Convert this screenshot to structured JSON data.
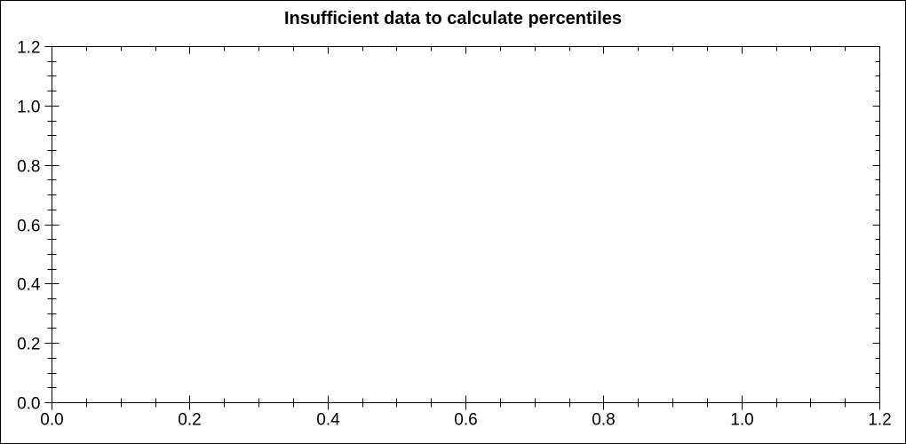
{
  "title": "Insufficient data to calculate percentiles",
  "colors": {
    "axis": "#000000",
    "text": "#000000",
    "background": "#ffffff",
    "border": "#000000"
  },
  "chart_data": {
    "type": "scatter",
    "title": "Insufficient data to calculate percentiles",
    "series": [],
    "annotations": [],
    "grid": false,
    "legend": null,
    "x_axis": {
      "label": "",
      "min": 0.0,
      "max": 1.2,
      "major_tick_interval": 0.2,
      "minor_tick_interval": 0.05,
      "tick_labels": [
        "0.0",
        "0.2",
        "0.4",
        "0.6",
        "0.8",
        "1.0",
        "1.2"
      ]
    },
    "y_axis": {
      "label": "",
      "min": 0.0,
      "max": 1.2,
      "major_tick_interval": 0.2,
      "minor_tick_interval": 0.05,
      "tick_labels": [
        "0.0",
        "0.2",
        "0.4",
        "0.6",
        "0.8",
        "1.0",
        "1.2"
      ]
    }
  }
}
